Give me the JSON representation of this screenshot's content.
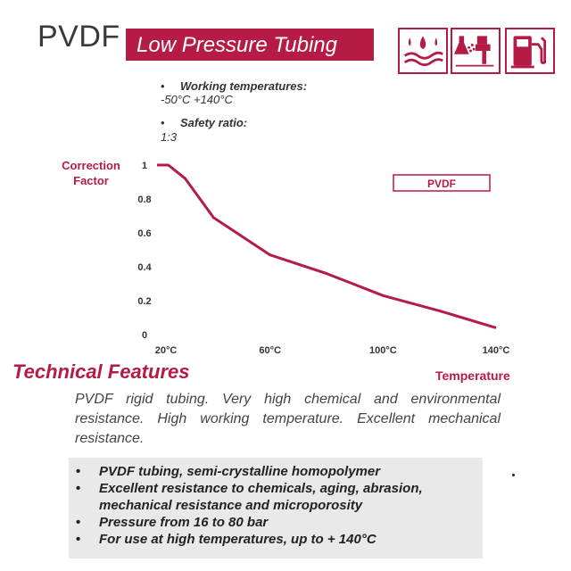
{
  "header": {
    "product": "PVDF",
    "title": "Low Pressure Tubing",
    "icons": [
      "liquid-drops-wave-icon",
      "chemical-spray-gun-icon",
      "fuel-pump-icon"
    ]
  },
  "specs": [
    {
      "label": "Working temperatures:",
      "value": "-50°C +140°C"
    },
    {
      "label": "Safety ratio:",
      "value": "1:3"
    }
  ],
  "chart_data": {
    "type": "line",
    "ylabel": "Correction Factor",
    "xlabel": "Temperature",
    "x_tick_labels": [
      "20°C",
      "60°C",
      "100°C",
      "140°C"
    ],
    "y_tick_labels": [
      "1",
      "0.8",
      "0.6",
      "0.4",
      "0.2",
      "0"
    ],
    "ylim": [
      0,
      1
    ],
    "xlim": [
      20,
      140
    ],
    "grid": "none",
    "legend_position": "top-right",
    "series": [
      {
        "name": "PVDF",
        "color": "#b51b44",
        "x": [
          20,
          24,
          30,
          40,
          60,
          80,
          100,
          120,
          140
        ],
        "y": [
          1.0,
          1.0,
          0.92,
          0.69,
          0.47,
          0.36,
          0.23,
          0.14,
          0.04
        ]
      }
    ]
  },
  "section": {
    "title": "Technical Features",
    "description": "PVDF rigid tubing. Very high chemical and environmental resistance. High working temperature. Excellent mechanical resistance."
  },
  "features": [
    "PVDF tubing, semi-crystalline homopolymer",
    "Excellent resistance to chemicals, aging, abrasion, mechanical resistance and microporosity",
    "Pressure from 16 to 80 bar",
    "For use at high temperatures, up to + 140°C"
  ],
  "colors": {
    "accent": "#b51b44",
    "text": "#333333",
    "feature_bg": "#e9e9e9"
  }
}
